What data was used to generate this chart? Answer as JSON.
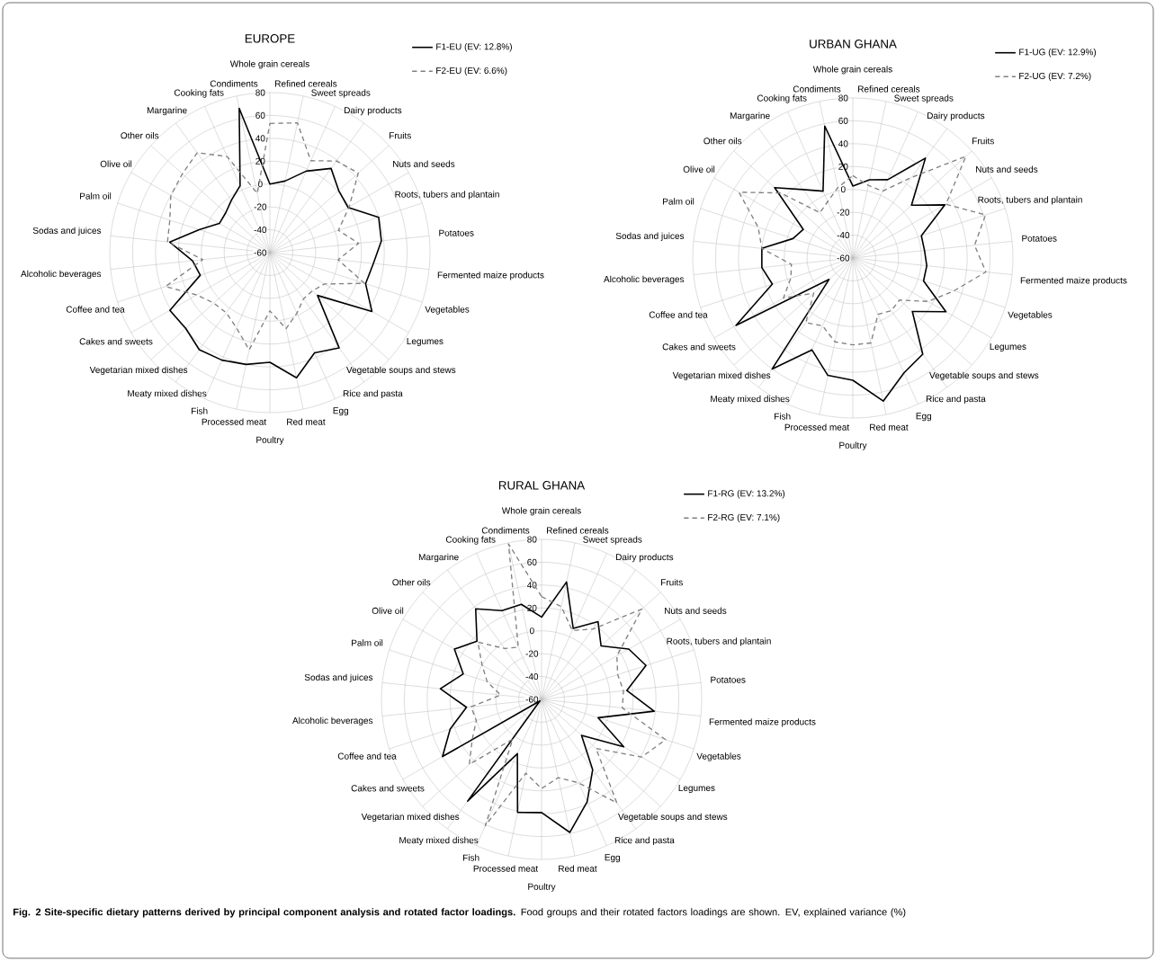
{
  "chart_data": [
    {
      "type": "radar",
      "title": "EUROPE",
      "categories": [
        "Whole grain cereals",
        "Refined cereals",
        "Sweet spreads",
        "Dairy products",
        "Fruits",
        "Nuts and seeds",
        "Roots, tubers and plantain",
        "Potatoes",
        "Fermented maize products",
        "Vegetables",
        "Legumes",
        "Vegetable soups and stews",
        "Rice and pasta",
        "Egg",
        "Red meat",
        "Poultry",
        "Processed meat",
        "Fish",
        "Meaty mixed dishes",
        "Vegetarian mixed dishes",
        "Cakes and sweets",
        "Coffee and tea",
        "Alcoholic beverages",
        "Sodas and juices",
        "Palm oil",
        "Olive oil",
        "Other oils",
        "Margarine",
        "Cooking fats",
        "Condiments"
      ],
      "series": [
        {
          "name": "F1-EU (EV: 12.8%)",
          "color": "#000000",
          "line_style": "solid",
          "values": [
            0,
            4,
            18,
            31,
            21,
            19,
            40,
            38,
            31,
            28,
            43,
            -4,
            43,
            36,
            52,
            36,
            40,
            43,
            45,
            39,
            41,
            4,
            8,
            28,
            5,
            -9,
            -8,
            -3,
            4,
            69
          ]
        },
        {
          "name": "F2-EU (EV: 6.6%)",
          "color": "#808080",
          "line_style": "dashed",
          "values": [
            53,
            56,
            28,
            39,
            44,
            20,
            3,
            18,
            0,
            27,
            -5,
            -10,
            -10,
            -2,
            8,
            -9,
            27,
            12,
            5,
            6,
            14,
            36,
            -1,
            30,
            32,
            40,
            43,
            48,
            32,
            -7
          ]
        }
      ],
      "ylim": [
        -60,
        80
      ],
      "yticks": [
        -60,
        -40,
        -20,
        0,
        20,
        40,
        60,
        80
      ],
      "grid": true,
      "legend": "top right"
    },
    {
      "type": "radar",
      "title": "URBAN GHANA",
      "categories": [
        "Whole grain cereals",
        "Refined cereals",
        "Sweet spreads",
        "Dairy products",
        "Fruits",
        "Nuts and seeds",
        "Roots, tubers and plantain",
        "Potatoes",
        "Fermented maize products",
        "Vegetables",
        "Legumes",
        "Vegetable soups and stews",
        "Rice and pasta",
        "Egg",
        "Red meat",
        "Poultry",
        "Processed meat",
        "Fish",
        "Meaty mixed dishes",
        "Vegetarian mixed dishes",
        "Cakes and sweets",
        "Coffee and tea",
        "Alcoholic beverages",
        "Sodas and juices",
        "Palm oil",
        "Olive oil",
        "Other oils",
        "Margarine",
        "Cooking fats",
        "Condiments"
      ],
      "series": [
        {
          "name": "F1-UG (EV: 12.9%)",
          "color": "#000000",
          "line_style": "solid",
          "values": [
            3,
            10,
            15,
            48,
            9,
            33,
            3,
            3,
            5,
            5,
            34,
            10,
            44,
            50,
            68,
            47,
            45,
            28,
            60,
            -32,
            58,
            14,
            20,
            20,
            -5,
            -10,
            32,
            14,
            4,
            58
          ]
        },
        {
          "name": "F2-UG (EV: 7.2%)",
          "color": "#808080",
          "line_style": "dashed",
          "values": [
            12,
            5,
            4,
            27,
            73,
            34,
            62,
            47,
            57,
            33,
            16,
            -5,
            -3,
            -6,
            16,
            16,
            15,
            5,
            10,
            -14,
            10,
            -3,
            -6,
            20,
            27,
            55,
            25,
            -11,
            -6,
            3
          ]
        }
      ],
      "ylim": [
        -60,
        80
      ],
      "yticks": [
        -60,
        -40,
        -20,
        0,
        20,
        40,
        60,
        80
      ],
      "grid": true,
      "legend": "top right"
    },
    {
      "type": "radar",
      "title": "RURAL GHANA",
      "categories": [
        "Whole grain cereals",
        "Refined cereals",
        "Sweet spreads",
        "Dairy products",
        "Fruits",
        "Nuts and seeds",
        "Roots, tubers and plantain",
        "Potatoes",
        "Fermented maize products",
        "Vegetables",
        "Legumes",
        "Vegetable soups and stews",
        "Rice and pasta",
        "Egg",
        "Red meat",
        "Poultry",
        "Processed meat",
        "Fish",
        "Meaty mixed dishes",
        "Vegetarian mixed dishes",
        "Cakes and sweets",
        "Coffee and tea",
        "Alcoholic beverages",
        "Sodas and juices",
        "Palm oil",
        "Olive oil",
        "Other oils",
        "Margarine",
        "Cooking fats",
        "Condiments"
      ],
      "series": [
        {
          "name": "F1-RG (EV: 13.2%)",
          "color": "#000000",
          "line_style": "solid",
          "values": [
            12,
            45,
            8,
            24,
            10,
            28,
            36,
            15,
            39,
            -8,
            23,
            -13,
            16,
            38,
            59,
            39,
            41,
            -8,
            50,
            -58,
            40,
            24,
            6,
            29,
            12,
            28,
            16,
            38,
            25,
            25
          ]
        },
        {
          "name": "F2-RG (EV: 7.1%)",
          "color": "#808080",
          "line_style": "dashed",
          "values": [
            30,
            23,
            6,
            16,
            58,
            16,
            10,
            12,
            11,
            54,
            41,
            4,
            52,
            20,
            10,
            18,
            6,
            61,
            -17,
            25,
            10,
            0,
            2,
            -24,
            -10,
            0,
            15,
            -5,
            -10,
            79
          ]
        }
      ],
      "ylim": [
        -60,
        80
      ],
      "yticks": [
        -60,
        -40,
        -20,
        0,
        20,
        40,
        60,
        80
      ],
      "grid": true,
      "legend": "top right",
      "annotations": [
        "**Fig. 2 Site-specific dietary patterns derived by principal component analysis and rotated factor loadings.** Food groups and their rotated factors loadings are shown. EV, explained variance (%)"
      ]
    }
  ]
}
